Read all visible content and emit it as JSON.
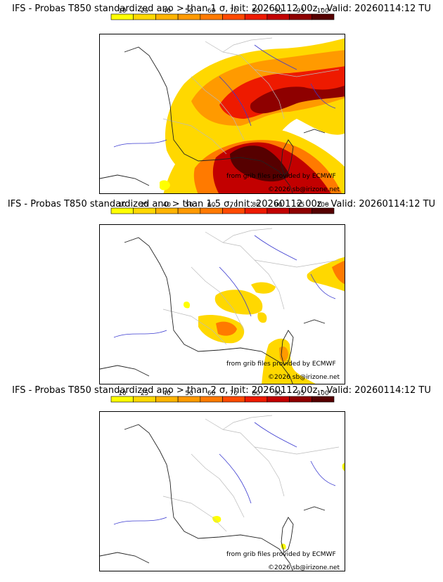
{
  "colors": {
    "scale": [
      "#ffff00",
      "#ffd800",
      "#ffb400",
      "#ff9a00",
      "#ff7a00",
      "#ff4a00",
      "#ee1a00",
      "#c20000",
      "#8e0000",
      "#560000"
    ]
  },
  "colorbar": {
    "ticks": [
      "10",
      "25",
      "40",
      "50",
      "60",
      "70",
      "80",
      "90",
      "95",
      "100"
    ]
  },
  "panels": [
    {
      "title": "IFS - Probas T850  standardized ano > than 1 σ, Init: 20260112 00z - Valid: 20260114:12 TU",
      "credit_source": "from grib files provided by ECMWF",
      "credit_copyright": "©2026 sb@irizone.net"
    },
    {
      "title": "IFS - Probas T850  standardized ano > than 1.5 σ, Init: 20260112 00z - Valid: 20260114:12 TU",
      "credit_source": "from grib files provided by ECMWF",
      "credit_copyright": "©2026 sb@irizone.net"
    },
    {
      "title": "IFS - Probas T850  standardized ano > than 2 σ, Init: 20260112 00z - Valid: 20260114:12 TU",
      "credit_source": "from grib files provided by ECMWF",
      "credit_copyright": "©2026 sb@irizone.net"
    }
  ]
}
